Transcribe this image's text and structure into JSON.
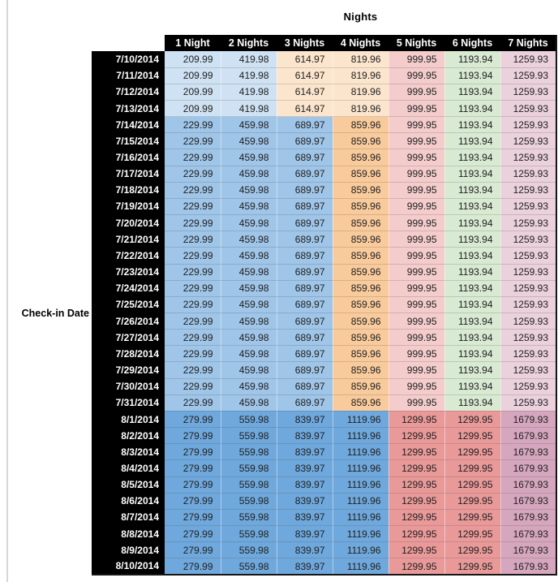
{
  "palette": {
    "header_bg": "#000000",
    "header_text": "#ffffff",
    "value_text": "#212121",
    "left_rule": "#d6d6d6",
    "blue_light": "#cfe2f3",
    "blue_mid": "#9fc5e8",
    "blue_dark": "#6fa8dc",
    "orange_light": "#fce5cd",
    "orange_mid": "#f9cb9c",
    "red_light": "#f4cccc",
    "red_mid": "#ea9999",
    "green_light": "#d9ead3",
    "magenta_light": "#ead1dc",
    "magenta_mid": "#d5a6bd"
  },
  "band_colors": {
    "jul_early": [
      "blue_light",
      "blue_light",
      "orange_light",
      "orange_light",
      "red_light",
      "green_light",
      "magenta_light"
    ],
    "jul_mid": [
      "blue_mid",
      "blue_mid",
      "blue_mid",
      "orange_mid",
      "red_light",
      "green_light",
      "magenta_light"
    ],
    "aug": [
      "blue_dark",
      "blue_dark",
      "blue_dark",
      "blue_dark",
      "red_mid",
      "red_mid",
      "magenta_mid"
    ]
  },
  "chart_data": {
    "type": "table",
    "title": "Nights",
    "row_axis_label": "Check-in Date",
    "columns": [
      "1 Night",
      "2 Nights",
      "3 Nights",
      "4 Nights",
      "5 Nights",
      "6 Nights",
      "7 Nights"
    ],
    "rows": [
      {
        "date": "7/10/2014",
        "band": "jul_early",
        "values": [
          "209.99",
          "419.98",
          "614.97",
          "819.96",
          "999.95",
          "1193.94",
          "1259.93"
        ]
      },
      {
        "date": "7/11/2014",
        "band": "jul_early",
        "values": [
          "209.99",
          "419.98",
          "614.97",
          "819.96",
          "999.95",
          "1193.94",
          "1259.93"
        ]
      },
      {
        "date": "7/12/2014",
        "band": "jul_early",
        "values": [
          "209.99",
          "419.98",
          "614.97",
          "819.96",
          "999.95",
          "1193.94",
          "1259.93"
        ]
      },
      {
        "date": "7/13/2014",
        "band": "jul_early",
        "values": [
          "209.99",
          "419.98",
          "614.97",
          "819.96",
          "999.95",
          "1193.94",
          "1259.93"
        ]
      },
      {
        "date": "7/14/2014",
        "band": "jul_mid",
        "values": [
          "229.99",
          "459.98",
          "689.97",
          "859.96",
          "999.95",
          "1193.94",
          "1259.93"
        ]
      },
      {
        "date": "7/15/2014",
        "band": "jul_mid",
        "values": [
          "229.99",
          "459.98",
          "689.97",
          "859.96",
          "999.95",
          "1193.94",
          "1259.93"
        ]
      },
      {
        "date": "7/16/2014",
        "band": "jul_mid",
        "values": [
          "229.99",
          "459.98",
          "689.97",
          "859.96",
          "999.95",
          "1193.94",
          "1259.93"
        ]
      },
      {
        "date": "7/17/2014",
        "band": "jul_mid",
        "values": [
          "229.99",
          "459.98",
          "689.97",
          "859.96",
          "999.95",
          "1193.94",
          "1259.93"
        ]
      },
      {
        "date": "7/18/2014",
        "band": "jul_mid",
        "values": [
          "229.99",
          "459.98",
          "689.97",
          "859.96",
          "999.95",
          "1193.94",
          "1259.93"
        ]
      },
      {
        "date": "7/19/2014",
        "band": "jul_mid",
        "values": [
          "229.99",
          "459.98",
          "689.97",
          "859.96",
          "999.95",
          "1193.94",
          "1259.93"
        ]
      },
      {
        "date": "7/20/2014",
        "band": "jul_mid",
        "values": [
          "229.99",
          "459.98",
          "689.97",
          "859.96",
          "999.95",
          "1193.94",
          "1259.93"
        ]
      },
      {
        "date": "7/21/2014",
        "band": "jul_mid",
        "values": [
          "229.99",
          "459.98",
          "689.97",
          "859.96",
          "999.95",
          "1193.94",
          "1259.93"
        ]
      },
      {
        "date": "7/22/2014",
        "band": "jul_mid",
        "values": [
          "229.99",
          "459.98",
          "689.97",
          "859.96",
          "999.95",
          "1193.94",
          "1259.93"
        ]
      },
      {
        "date": "7/23/2014",
        "band": "jul_mid",
        "values": [
          "229.99",
          "459.98",
          "689.97",
          "859.96",
          "999.95",
          "1193.94",
          "1259.93"
        ]
      },
      {
        "date": "7/24/2014",
        "band": "jul_mid",
        "values": [
          "229.99",
          "459.98",
          "689.97",
          "859.96",
          "999.95",
          "1193.94",
          "1259.93"
        ]
      },
      {
        "date": "7/25/2014",
        "band": "jul_mid",
        "values": [
          "229.99",
          "459.98",
          "689.97",
          "859.96",
          "999.95",
          "1193.94",
          "1259.93"
        ]
      },
      {
        "date": "7/26/2014",
        "band": "jul_mid",
        "values": [
          "229.99",
          "459.98",
          "689.97",
          "859.96",
          "999.95",
          "1193.94",
          "1259.93"
        ]
      },
      {
        "date": "7/27/2014",
        "band": "jul_mid",
        "values": [
          "229.99",
          "459.98",
          "689.97",
          "859.96",
          "999.95",
          "1193.94",
          "1259.93"
        ]
      },
      {
        "date": "7/28/2014",
        "band": "jul_mid",
        "values": [
          "229.99",
          "459.98",
          "689.97",
          "859.96",
          "999.95",
          "1193.94",
          "1259.93"
        ]
      },
      {
        "date": "7/29/2014",
        "band": "jul_mid",
        "values": [
          "229.99",
          "459.98",
          "689.97",
          "859.96",
          "999.95",
          "1193.94",
          "1259.93"
        ]
      },
      {
        "date": "7/30/2014",
        "band": "jul_mid",
        "values": [
          "229.99",
          "459.98",
          "689.97",
          "859.96",
          "999.95",
          "1193.94",
          "1259.93"
        ]
      },
      {
        "date": "7/31/2014",
        "band": "jul_mid",
        "values": [
          "229.99",
          "459.98",
          "689.97",
          "859.96",
          "999.95",
          "1193.94",
          "1259.93"
        ]
      },
      {
        "date": "8/1/2014",
        "band": "aug",
        "values": [
          "279.99",
          "559.98",
          "839.97",
          "1119.96",
          "1299.95",
          "1299.95",
          "1679.93"
        ]
      },
      {
        "date": "8/2/2014",
        "band": "aug",
        "values": [
          "279.99",
          "559.98",
          "839.97",
          "1119.96",
          "1299.95",
          "1299.95",
          "1679.93"
        ]
      },
      {
        "date": "8/3/2014",
        "band": "aug",
        "values": [
          "279.99",
          "559.98",
          "839.97",
          "1119.96",
          "1299.95",
          "1299.95",
          "1679.93"
        ]
      },
      {
        "date": "8/4/2014",
        "band": "aug",
        "values": [
          "279.99",
          "559.98",
          "839.97",
          "1119.96",
          "1299.95",
          "1299.95",
          "1679.93"
        ]
      },
      {
        "date": "8/5/2014",
        "band": "aug",
        "values": [
          "279.99",
          "559.98",
          "839.97",
          "1119.96",
          "1299.95",
          "1299.95",
          "1679.93"
        ]
      },
      {
        "date": "8/6/2014",
        "band": "aug",
        "values": [
          "279.99",
          "559.98",
          "839.97",
          "1119.96",
          "1299.95",
          "1299.95",
          "1679.93"
        ]
      },
      {
        "date": "8/7/2014",
        "band": "aug",
        "values": [
          "279.99",
          "559.98",
          "839.97",
          "1119.96",
          "1299.95",
          "1299.95",
          "1679.93"
        ]
      },
      {
        "date": "8/8/2014",
        "band": "aug",
        "values": [
          "279.99",
          "559.98",
          "839.97",
          "1119.96",
          "1299.95",
          "1299.95",
          "1679.93"
        ]
      },
      {
        "date": "8/9/2014",
        "band": "aug",
        "values": [
          "279.99",
          "559.98",
          "839.97",
          "1119.96",
          "1299.95",
          "1299.95",
          "1679.93"
        ]
      },
      {
        "date": "8/10/2014",
        "band": "aug",
        "values": [
          "279.99",
          "559.98",
          "839.97",
          "1119.96",
          "1299.95",
          "1299.95",
          "1679.93"
        ]
      }
    ]
  }
}
